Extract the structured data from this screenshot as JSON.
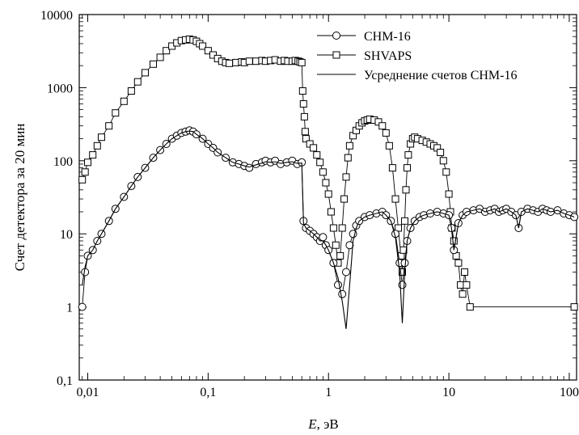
{
  "chart_data": {
    "type": "scatter",
    "title": "",
    "xlabel_italic": "E",
    "xlabel_rest": ", эВ",
    "ylabel": "Счет детектора за 20 мин",
    "x_scale": "log",
    "y_scale": "log",
    "xlim": [
      0.0085,
      115
    ],
    "ylim": [
      0.1,
      10000
    ],
    "grid": false,
    "legend_position": "top-right",
    "x_ticks": [
      {
        "value": 0.01,
        "label": "0,01"
      },
      {
        "value": 0.1,
        "label": "0,1"
      },
      {
        "value": 1,
        "label": "1"
      },
      {
        "value": 10,
        "label": "10"
      },
      {
        "value": 100,
        "label": "100"
      }
    ],
    "y_ticks": [
      {
        "value": 0.1,
        "label": "0,1"
      },
      {
        "value": 1,
        "label": "1"
      },
      {
        "value": 10,
        "label": "10"
      },
      {
        "value": 100,
        "label": "100"
      },
      {
        "value": 1000,
        "label": "1000"
      },
      {
        "value": 10000,
        "label": "10000"
      }
    ],
    "series": [
      {
        "name": "SHVAPS",
        "marker": "square",
        "x": [
          0.009,
          0.0095,
          0.01,
          0.011,
          0.012,
          0.013,
          0.015,
          0.017,
          0.02,
          0.023,
          0.026,
          0.03,
          0.035,
          0.04,
          0.045,
          0.05,
          0.055,
          0.06,
          0.065,
          0.07,
          0.075,
          0.08,
          0.085,
          0.09,
          0.1,
          0.11,
          0.12,
          0.13,
          0.14,
          0.15,
          0.17,
          0.19,
          0.2,
          0.22,
          0.25,
          0.28,
          0.3,
          0.33,
          0.36,
          0.4,
          0.43,
          0.46,
          0.5,
          0.53,
          0.56,
          0.58,
          0.6,
          0.61,
          0.62,
          0.63,
          0.64,
          0.65,
          0.7,
          0.75,
          0.8,
          0.85,
          0.9,
          0.95,
          1,
          1.05,
          1.1,
          1.15,
          1.2,
          1.25,
          1.3,
          1.35,
          1.4,
          1.45,
          1.5,
          1.6,
          1.7,
          1.8,
          1.9,
          2,
          2.1,
          2.2,
          2.4,
          2.6,
          2.8,
          3,
          3.2,
          3.4,
          3.6,
          3.8,
          4,
          4.1,
          4.2,
          4.3,
          4.4,
          4.5,
          4.6,
          4.8,
          5,
          5.2,
          5.5,
          6,
          6.5,
          7,
          7.5,
          8,
          8.5,
          9,
          9.5,
          10,
          10.3,
          10.6,
          11,
          11.5,
          12,
          12.5,
          13,
          13.5,
          14,
          15,
          110
        ],
        "y": [
          55,
          70,
          95,
          120,
          160,
          210,
          300,
          450,
          650,
          900,
          1200,
          1600,
          2100,
          2600,
          3200,
          3700,
          4100,
          4400,
          4500,
          4600,
          4500,
          4300,
          4000,
          3700,
          3200,
          2800,
          2500,
          2300,
          2200,
          2150,
          2200,
          2250,
          2200,
          2300,
          2300,
          2350,
          2300,
          2350,
          2400,
          2300,
          2350,
          2300,
          2300,
          2350,
          2300,
          2250,
          2200,
          900,
          600,
          400,
          250,
          200,
          170,
          150,
          120,
          95,
          70,
          50,
          35,
          20,
          12,
          7,
          4,
          5,
          12,
          30,
          60,
          110,
          160,
          220,
          260,
          300,
          330,
          350,
          360,
          370,
          360,
          340,
          300,
          240,
          160,
          80,
          30,
          12,
          5,
          3,
          6,
          15,
          40,
          80,
          120,
          170,
          200,
          210,
          200,
          190,
          180,
          170,
          160,
          150,
          130,
          100,
          70,
          35,
          20,
          12,
          8,
          5,
          4,
          2,
          1.5,
          3,
          2,
          1,
          1
        ],
        "color": "#000000"
      },
      {
        "name": "СНМ-16",
        "marker": "circle",
        "x": [
          0.009,
          0.0095,
          0.01,
          0.011,
          0.012,
          0.013,
          0.015,
          0.017,
          0.02,
          0.023,
          0.026,
          0.03,
          0.035,
          0.04,
          0.045,
          0.05,
          0.055,
          0.06,
          0.065,
          0.07,
          0.075,
          0.08,
          0.09,
          0.1,
          0.11,
          0.12,
          0.14,
          0.16,
          0.18,
          0.2,
          0.22,
          0.25,
          0.28,
          0.3,
          0.33,
          0.36,
          0.4,
          0.45,
          0.5,
          0.55,
          0.6,
          0.62,
          0.65,
          0.7,
          0.75,
          0.8,
          0.85,
          0.9,
          0.95,
          1,
          1.1,
          1.2,
          1.3,
          1.4,
          1.5,
          1.6,
          1.7,
          1.8,
          2,
          2.2,
          2.5,
          2.8,
          3,
          3.3,
          3.6,
          3.9,
          4.1,
          4.3,
          4.5,
          4.8,
          5.2,
          5.7,
          6.2,
          7,
          8,
          9,
          10,
          10.5,
          11,
          12,
          13,
          14,
          16,
          18,
          20,
          22,
          24,
          26,
          28,
          30,
          33,
          36,
          38,
          40,
          45,
          50,
          55,
          60,
          65,
          70,
          80,
          90,
          100,
          110
        ],
        "y": [
          1,
          3,
          5,
          6,
          8,
          10,
          15,
          22,
          32,
          45,
          60,
          80,
          110,
          140,
          170,
          200,
          220,
          240,
          250,
          260,
          250,
          230,
          200,
          170,
          150,
          130,
          110,
          95,
          90,
          85,
          80,
          90,
          95,
          100,
          95,
          100,
          90,
          95,
          100,
          90,
          95,
          15,
          12,
          11,
          10,
          9,
          8,
          9,
          7,
          6,
          4,
          2,
          1.5,
          3,
          7,
          10,
          13,
          15,
          17,
          18,
          19,
          20,
          18,
          15,
          10,
          4,
          2,
          4,
          8,
          12,
          15,
          17,
          18,
          19,
          20,
          19,
          18,
          12,
          6,
          14,
          18,
          20,
          21,
          22,
          20,
          21,
          22,
          20,
          21,
          22,
          20,
          18,
          12,
          20,
          22,
          21,
          20,
          22,
          21,
          20,
          21,
          19,
          18,
          17
        ],
        "color": "#000000"
      },
      {
        "name": "Усреднение счетов СНМ-16",
        "marker": "line",
        "x": [
          0.009,
          0.0095,
          0.01,
          0.011,
          0.012,
          0.013,
          0.015,
          0.017,
          0.02,
          0.023,
          0.026,
          0.03,
          0.035,
          0.04,
          0.045,
          0.05,
          0.055,
          0.06,
          0.065,
          0.07,
          0.075,
          0.08,
          0.09,
          0.1,
          0.11,
          0.12,
          0.14,
          0.16,
          0.18,
          0.2,
          0.22,
          0.25,
          0.28,
          0.3,
          0.33,
          0.36,
          0.4,
          0.45,
          0.5,
          0.55,
          0.6,
          0.62,
          0.65,
          0.7,
          0.75,
          0.8,
          0.85,
          0.9,
          0.95,
          1,
          1.1,
          1.2,
          1.3,
          1.4,
          1.5,
          1.6,
          1.7,
          1.8,
          2,
          2.2,
          2.5,
          2.8,
          3,
          3.3,
          3.6,
          3.9,
          4.1,
          4.3,
          4.5,
          4.8,
          5.2,
          5.7,
          6.2,
          7,
          8,
          9,
          10,
          10.5,
          11,
          12,
          13,
          14,
          16,
          18,
          20,
          22,
          24,
          26,
          28,
          30,
          33,
          36,
          38,
          40,
          45,
          50,
          55,
          60,
          65,
          70,
          80,
          90,
          100,
          110
        ],
        "y": [
          2,
          3.5,
          5,
          6,
          8,
          10,
          15,
          22,
          32,
          45,
          60,
          80,
          110,
          140,
          170,
          200,
          220,
          240,
          250,
          255,
          250,
          230,
          200,
          170,
          150,
          130,
          110,
          95,
          90,
          85,
          82,
          88,
          93,
          97,
          95,
          97,
          92,
          95,
          97,
          92,
          93,
          14,
          12,
          11,
          10,
          9,
          8,
          8,
          7,
          6,
          4,
          2.5,
          1.2,
          0.5,
          2,
          8,
          12,
          15,
          17,
          18,
          19,
          20,
          18,
          15,
          9,
          3,
          0.6,
          3,
          8,
          12,
          15,
          17,
          18,
          19,
          20,
          19,
          18,
          12,
          6,
          14,
          18,
          20,
          21,
          22,
          20,
          21,
          22,
          20,
          21,
          22,
          20,
          18,
          12,
          20,
          22,
          21,
          20,
          22,
          21,
          20,
          21,
          19,
          18,
          17
        ],
        "color": "#000000"
      }
    ]
  }
}
